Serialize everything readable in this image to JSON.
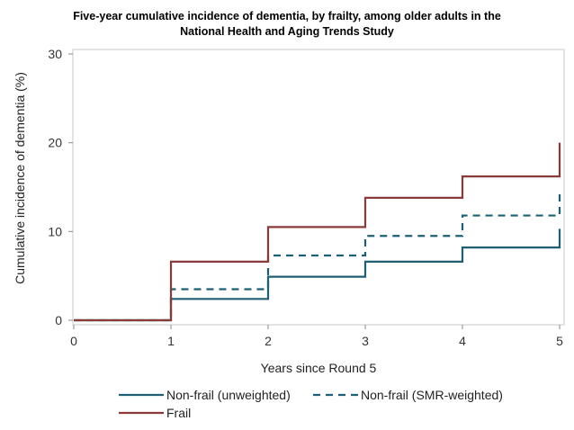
{
  "chart_data": {
    "type": "line",
    "step": true,
    "title_line1": "Five-year cumulative incidence of dementia, by frailty, among older adults in the",
    "title_line2": "National Health and Aging Trends Study",
    "xlabel": "Years since Round 5",
    "ylabel": "Cumulative incidence of dementia (%)",
    "xlim": [
      0,
      5
    ],
    "ylim": [
      0,
      30
    ],
    "xticks": [
      0,
      1,
      2,
      3,
      4,
      5
    ],
    "yticks": [
      0,
      10,
      20,
      30
    ],
    "grid": false,
    "legend_position": "bottom",
    "series": [
      {
        "name": "Non-frail (unweighted)",
        "color": "#1f5f73",
        "dash": "solid",
        "x": [
          0,
          1,
          2,
          3,
          4,
          5
        ],
        "y": [
          0,
          2.4,
          4.9,
          6.6,
          8.2,
          10.3
        ]
      },
      {
        "name": "Non-frail (SMR-weighted)",
        "color": "#1f5f73",
        "dash": "dashed",
        "x": [
          0,
          1,
          2,
          3,
          4,
          5
        ],
        "y": [
          0,
          3.5,
          7.3,
          9.5,
          11.8,
          14.5
        ]
      },
      {
        "name": "Frail",
        "color": "#8b3a3a",
        "dash": "solid",
        "x": [
          0,
          1,
          2,
          3,
          4,
          5
        ],
        "y": [
          0,
          6.6,
          10.5,
          13.8,
          16.2,
          20.0
        ]
      }
    ]
  }
}
